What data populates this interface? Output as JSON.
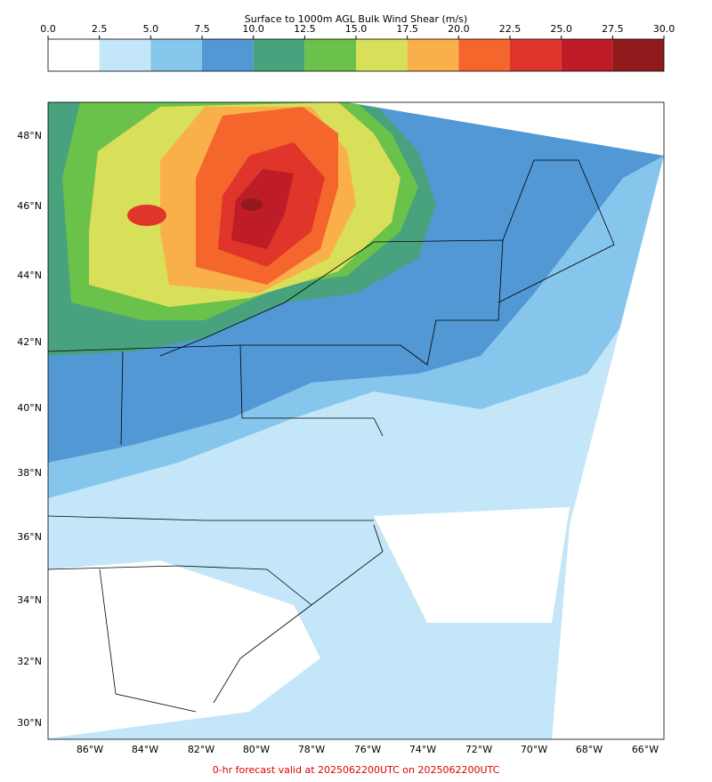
{
  "colorbar": {
    "title": "Surface to 1000m AGL Bulk Wind Shear (m/s)",
    "ticks": [
      {
        "value": 0,
        "label": "0.0"
      },
      {
        "value": 2.5,
        "label": "2.5"
      },
      {
        "value": 5,
        "label": "5.0"
      },
      {
        "value": 7.5,
        "label": "7.5"
      },
      {
        "value": 10,
        "label": "10.0"
      },
      {
        "value": 12.5,
        "label": "12.5"
      },
      {
        "value": 15,
        "label": "15.0"
      },
      {
        "value": 17.5,
        "label": "17.5"
      },
      {
        "value": 20,
        "label": "20.0"
      },
      {
        "value": 22.5,
        "label": "22.5"
      },
      {
        "value": 25,
        "label": "25.0"
      },
      {
        "value": 27.5,
        "label": "27.5"
      },
      {
        "value": 30,
        "label": "30.0"
      }
    ],
    "colors": [
      "#ffffff",
      "#c3e6f8",
      "#86c6ec",
      "#5298d4",
      "#48a27e",
      "#6ac24a",
      "#d8e05a",
      "#f9b04a",
      "#f5662d",
      "#e0352a",
      "#be1c26",
      "#911a1d"
    ]
  },
  "map": {
    "lat_labels": [
      "48°N",
      "46°N",
      "44°N",
      "42°N",
      "40°N",
      "38°N",
      "36°N",
      "34°N",
      "32°N",
      "30°N"
    ],
    "lon_labels": [
      "86°W",
      "84°W",
      "82°W",
      "80°W",
      "78°W",
      "76°W",
      "74°W",
      "72°W",
      "70°W",
      "68°W",
      "66°W"
    ]
  },
  "footer": "0-hr forecast valid at 2025062200UTC on 2025062200UTC"
}
